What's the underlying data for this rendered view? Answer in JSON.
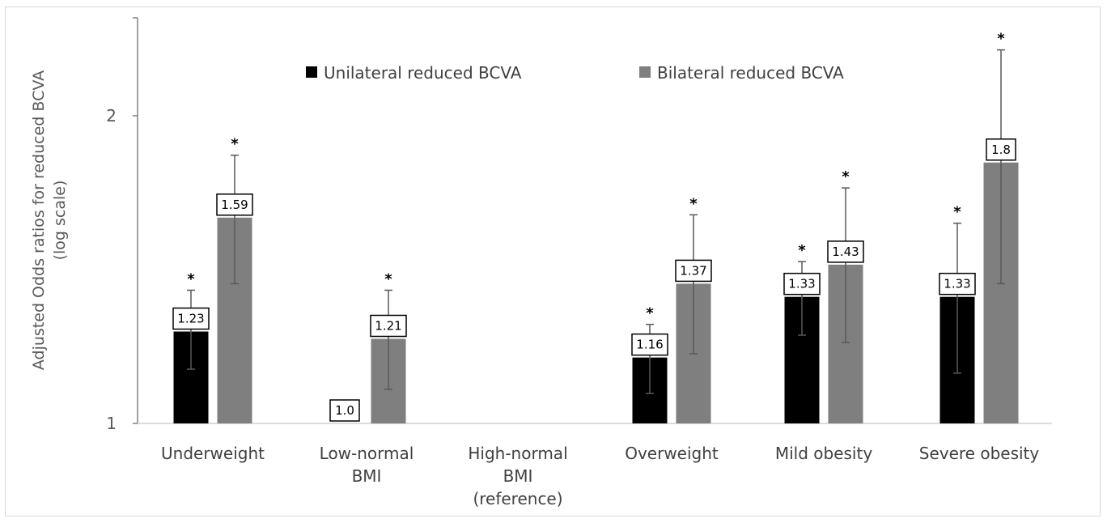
{
  "chart_data": {
    "type": "bar",
    "title": "",
    "ylabel_lines": [
      "Adjusted Odds ratios for reduced BCVA",
      "(log scale)"
    ],
    "xlabel": "",
    "y_scale": "log",
    "ylim": [
      1,
      2.35
    ],
    "yticks": [
      {
        "value": 1,
        "label": "1"
      },
      {
        "value": 2,
        "label": "2"
      }
    ],
    "grid": false,
    "legend_position": "top",
    "categories": [
      {
        "lines": [
          "Underweight"
        ]
      },
      {
        "lines": [
          "Low-normal",
          "BMI"
        ]
      },
      {
        "lines": [
          "High-normal",
          "BMI",
          "(reference)"
        ]
      },
      {
        "lines": [
          "Overweight"
        ]
      },
      {
        "lines": [
          "Mild obesity"
        ]
      },
      {
        "lines": [
          "Severe obesity"
        ]
      }
    ],
    "series": [
      {
        "name": "Unilateral reduced BCVA",
        "color": "#000000",
        "values": [
          1.23,
          1.0,
          null,
          1.16,
          1.33,
          1.33
        ],
        "labels": [
          "1.23",
          "1.0",
          null,
          "1.16",
          "1.33",
          "1.33"
        ],
        "ci_low": [
          1.13,
          null,
          null,
          1.07,
          1.22,
          1.12
        ],
        "ci_high": [
          1.35,
          null,
          null,
          1.25,
          1.44,
          1.57
        ],
        "significant": [
          true,
          false,
          false,
          true,
          true,
          true
        ]
      },
      {
        "name": "Bilateral reduced BCVA",
        "color": "#7f7f7f",
        "values": [
          1.59,
          1.21,
          null,
          1.37,
          1.43,
          1.8
        ],
        "labels": [
          "1.59",
          "1.21",
          null,
          "1.37",
          "1.43",
          "1.8"
        ],
        "ci_low": [
          1.37,
          1.08,
          null,
          1.17,
          1.2,
          1.37
        ],
        "ci_high": [
          1.83,
          1.35,
          null,
          1.6,
          1.7,
          2.32
        ],
        "significant": [
          true,
          true,
          false,
          true,
          true,
          true
        ]
      }
    ],
    "significance_marker": "*"
  }
}
